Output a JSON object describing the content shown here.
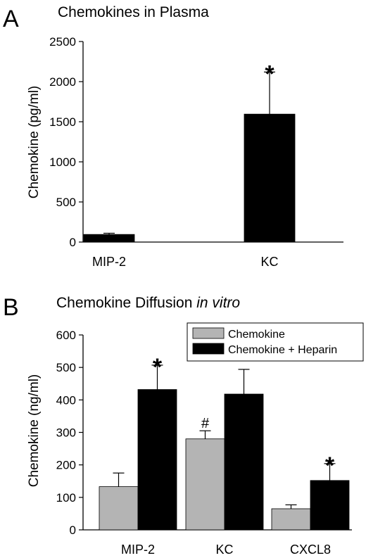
{
  "chart_data": [
    {
      "panel_label": "A",
      "type": "bar",
      "title": "Chemokines in Plasma",
      "title_italic": "",
      "xlabel": "",
      "ylabel": "Chemokine (pg/ml)",
      "ylim": [
        0,
        2500
      ],
      "yticks": [
        0,
        500,
        1000,
        1500,
        2000,
        2500
      ],
      "categories": [
        "MIP-2",
        "KC"
      ],
      "series": [
        {
          "color": "#000000",
          "values": [
            95,
            1595
          ],
          "errors": [
            15,
            525
          ],
          "markers": [
            "",
            "*"
          ]
        }
      ]
    },
    {
      "panel_label": "B",
      "type": "bar",
      "title": "Chemokine Diffusion ",
      "title_italic": "in vitro",
      "xlabel": "",
      "ylabel": "Chemokine (ng/ml)",
      "ylim": [
        0,
        600
      ],
      "yticks": [
        0,
        100,
        200,
        300,
        400,
        500,
        600
      ],
      "categories": [
        "MIP-2",
        "KC",
        "CXCL8"
      ],
      "legend_position": "top-right",
      "series": [
        {
          "name": "Chemokine",
          "color": "#b4b4b4",
          "values": [
            133,
            280,
            65
          ],
          "errors": [
            42,
            25,
            12
          ],
          "markers": [
            "",
            "#",
            ""
          ]
        },
        {
          "name": "Chemokine + Heparin",
          "color": "#000000",
          "values": [
            432,
            418,
            152
          ],
          "errors": [
            75,
            76,
            52
          ],
          "markers": [
            "*",
            "",
            "*"
          ]
        }
      ]
    }
  ]
}
